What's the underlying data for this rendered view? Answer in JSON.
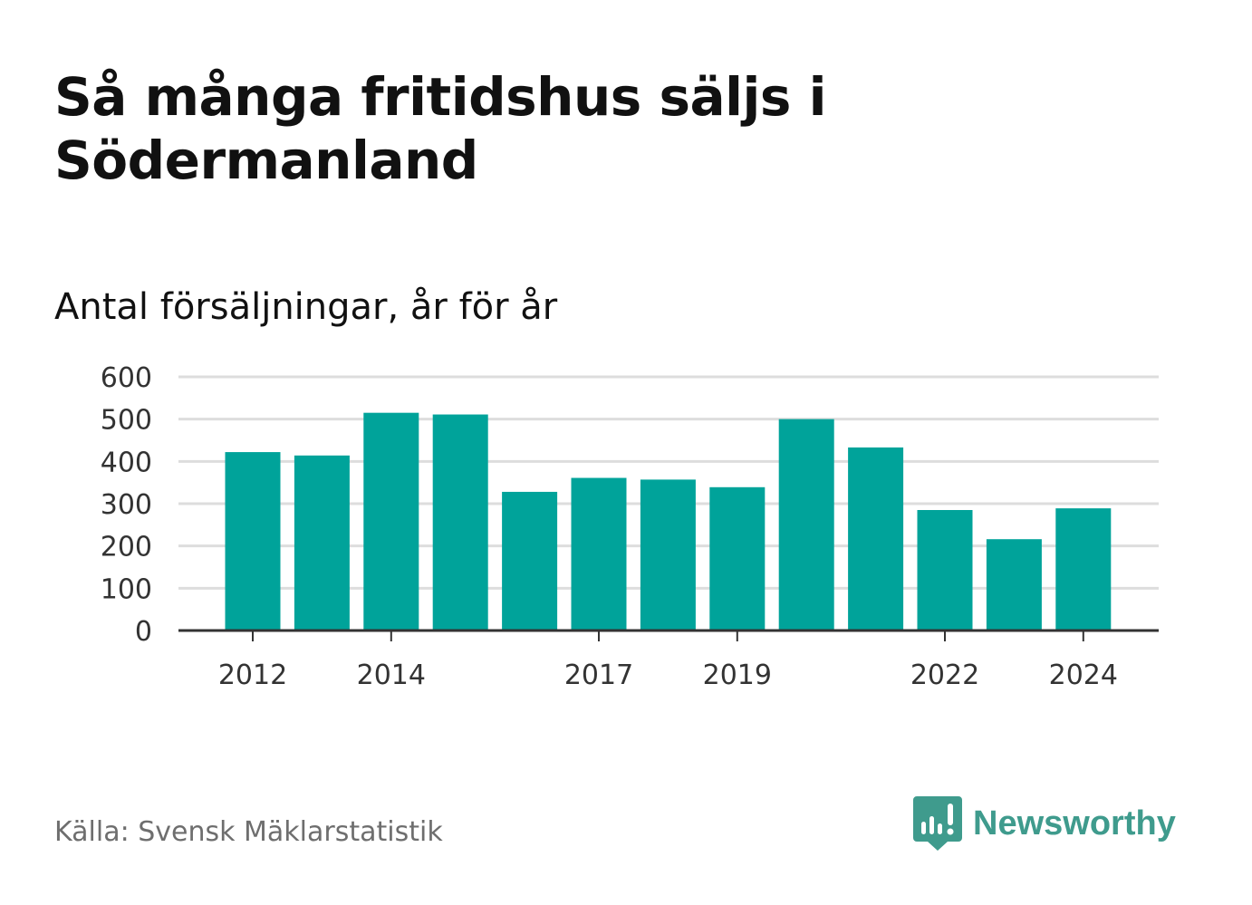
{
  "title": "Så många fritidshus säljs i Södermanland",
  "subtitle": "Antal försäljningar, år för år",
  "source": "Källa: Svensk Mäklarstatistik",
  "brand": {
    "name": "Newsworthy",
    "icon": "newsworthy-logo-icon",
    "color": "#3f9b8d"
  },
  "chart_data": {
    "type": "bar",
    "categories": [
      "2012",
      "2013",
      "2014",
      "2015",
      "2016",
      "2017",
      "2018",
      "2019",
      "2020",
      "2021",
      "2022",
      "2023",
      "2024"
    ],
    "values": [
      422,
      414,
      515,
      511,
      328,
      361,
      357,
      339,
      500,
      433,
      285,
      216,
      289
    ],
    "x_tick_labels": [
      "2012",
      "2014",
      "2017",
      "2019",
      "2022",
      "2024"
    ],
    "y_ticks": [
      0,
      100,
      200,
      300,
      400,
      500,
      600
    ],
    "ylim": [
      0,
      600
    ],
    "xlabel": "",
    "ylabel": "",
    "grid": true,
    "bar_color": "#00a39a",
    "grid_color": "#dddddd",
    "axis_color": "#333333"
  }
}
